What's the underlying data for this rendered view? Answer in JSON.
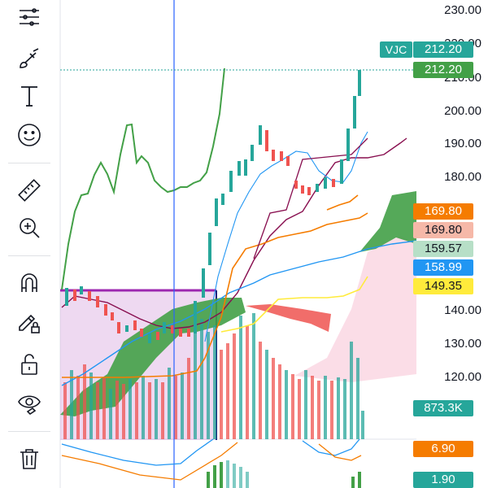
{
  "toolbar": {
    "tools": [
      {
        "name": "trend-lines-icon"
      },
      {
        "name": "brush-icon"
      },
      {
        "name": "text-icon",
        "glyph": "T"
      },
      {
        "name": "emoji-icon"
      },
      {
        "name": "ruler-icon"
      },
      {
        "name": "zoom-in-icon"
      },
      {
        "name": "magnet-icon"
      },
      {
        "name": "lock-drawing-icon"
      },
      {
        "name": "unlock-icon"
      },
      {
        "name": "eye-icon"
      },
      {
        "name": "trash-icon"
      }
    ]
  },
  "price_axis": {
    "labels": [
      "230.00",
      "220.00",
      "210.00",
      "200.00",
      "190.00",
      "180.00",
      "140.00",
      "130.00",
      "120.00"
    ]
  },
  "symbol": {
    "ticker": "VJC",
    "last_price": "212.20",
    "price_line": "212.20",
    "color": "#26a69a"
  },
  "indicator_badges": [
    {
      "value": "169.80",
      "bg": "#f57c00",
      "fg": "#ffffff"
    },
    {
      "value": "169.80",
      "bg": "#f6b8a8",
      "fg": "#131722"
    },
    {
      "value": "159.57",
      "bg": "#b7dfc7",
      "fg": "#131722"
    },
    {
      "value": "158.99",
      "bg": "#2196f3",
      "fg": "#ffffff"
    },
    {
      "value": "149.35",
      "bg": "#ffeb3b",
      "fg": "#131722"
    }
  ],
  "volume_badge": {
    "value": "873.3K",
    "bg": "#26a69a",
    "fg": "#ffffff"
  },
  "sub_badges": [
    {
      "value": "6.90",
      "bg": "#f57c00",
      "fg": "#ffffff"
    },
    {
      "value": "1.90",
      "bg": "#26a69a",
      "fg": "#ffffff"
    }
  ],
  "colors": {
    "up": "#26a69a",
    "down": "#ef5350",
    "green_line": "#43a047",
    "purple_box": "#9c27b0",
    "cursor_line": "#2962ff"
  }
}
